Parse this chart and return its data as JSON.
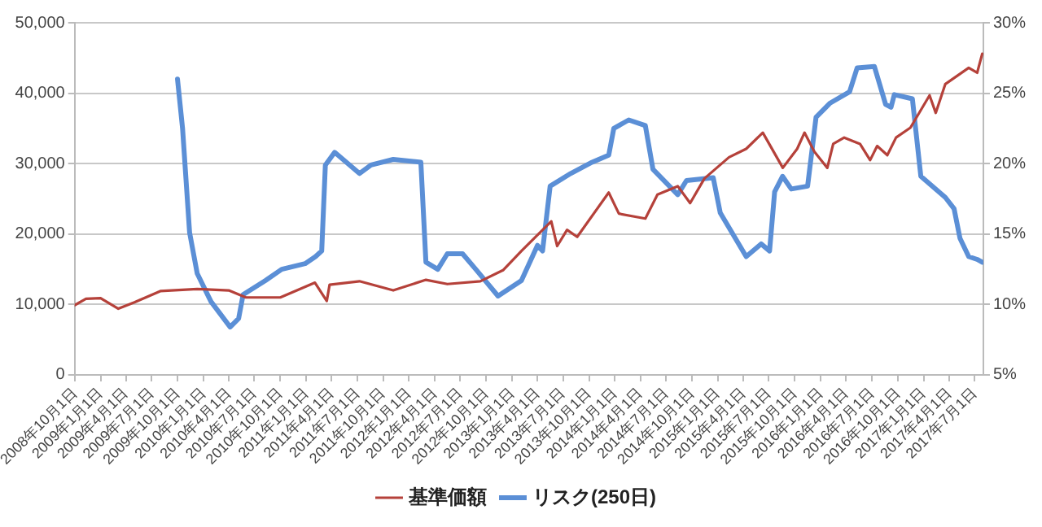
{
  "chart_data": {
    "type": "line",
    "series": [
      {
        "name": "基準価額",
        "color": "#b5413a",
        "axis": "y",
        "x": [
          "2008-10-01",
          "2008-11-10",
          "2009-01-01",
          "2009-03-05",
          "2009-05-01",
          "2009-08-01",
          "2009-12-10",
          "2010-04-01",
          "2010-06-01",
          "2010-10-01",
          "2011-02-01",
          "2011-03-15",
          "2011-03-25",
          "2011-07-09",
          "2011-11-06",
          "2012-03-01",
          "2012-05-16",
          "2012-09-10",
          "2012-12-01",
          "2013-02-03",
          "2013-05-20",
          "2013-06-10",
          "2013-07-15",
          "2013-08-20",
          "2013-12-10",
          "2014-01-15",
          "2014-04-19",
          "2014-06-01",
          "2014-08-12",
          "2014-09-25",
          "2014-11-15",
          "2015-02-10",
          "2015-04-12",
          "2015-06-10",
          "2015-08-20",
          "2015-10-10",
          "2015-11-05",
          "2015-12-10",
          "2016-01-25",
          "2016-02-15",
          "2016-03-25",
          "2016-05-20",
          "2016-06-25",
          "2016-07-20",
          "2016-08-25",
          "2016-09-25",
          "2016-11-15",
          "2017-01-22",
          "2017-02-13",
          "2017-03-19",
          "2017-06-10",
          "2017-07-10",
          "2017-07-28"
        ],
        "values": [
          9900,
          10800,
          10900,
          9400,
          10300,
          11900,
          12200,
          12000,
          11000,
          11000,
          13100,
          10500,
          12800,
          13300,
          12000,
          13500,
          12900,
          13300,
          14900,
          17600,
          21800,
          18300,
          20600,
          19600,
          25900,
          22900,
          22200,
          25600,
          26800,
          24400,
          27900,
          30900,
          32100,
          34400,
          29400,
          32100,
          34400,
          31700,
          29400,
          32800,
          33700,
          32800,
          30500,
          32500,
          31200,
          33700,
          35100,
          39700,
          37200,
          41300,
          43600,
          42900,
          45600
        ]
      },
      {
        "name": "リスク(250日)",
        "color": "#5b8fd6",
        "axis": "y2",
        "x": [
          "2009-10-01",
          "2009-10-19",
          "2009-11-13",
          "2009-12-10",
          "2010-01-28",
          "2010-04-06",
          "2010-05-06",
          "2010-05-22",
          "2010-08-09",
          "2010-10-06",
          "2010-12-28",
          "2011-02-03",
          "2011-02-25",
          "2011-03-10",
          "2011-04-12",
          "2011-07-09",
          "2011-08-19",
          "2011-11-06",
          "2012-02-12",
          "2012-03-01",
          "2012-04-12",
          "2012-05-16",
          "2012-07-09",
          "2012-08-25",
          "2012-11-12",
          "2013-02-03",
          "2013-04-01",
          "2013-04-19",
          "2013-05-16",
          "2013-07-28",
          "2013-10-12",
          "2013-12-10",
          "2013-12-28",
          "2014-02-19",
          "2014-04-19",
          "2014-05-16",
          "2014-08-12",
          "2014-09-12",
          "2014-12-16",
          "2015-01-10",
          "2015-04-12",
          "2015-06-04",
          "2015-07-04",
          "2015-07-22",
          "2015-08-19",
          "2015-09-19",
          "2015-11-16",
          "2015-12-16",
          "2016-02-04",
          "2016-04-13",
          "2016-05-10",
          "2016-07-10",
          "2016-08-19",
          "2016-09-07",
          "2016-09-19",
          "2016-11-22",
          "2016-12-22",
          "2017-03-19",
          "2017-04-19",
          "2017-05-10",
          "2017-06-10",
          "2017-07-10",
          "2017-07-28"
        ],
        "values": [
          26.0,
          22.5,
          15.1,
          12.2,
          10.2,
          8.4,
          9.0,
          10.7,
          11.7,
          12.5,
          12.9,
          13.4,
          13.8,
          19.9,
          20.8,
          19.3,
          19.9,
          20.3,
          20.1,
          13.0,
          12.5,
          13.6,
          13.6,
          12.5,
          10.6,
          11.7,
          14.2,
          13.8,
          18.4,
          19.3,
          20.1,
          20.6,
          22.5,
          23.1,
          22.7,
          19.6,
          17.8,
          18.8,
          19.0,
          16.5,
          13.4,
          14.3,
          13.8,
          18.0,
          19.1,
          18.2,
          18.4,
          23.3,
          24.3,
          25.1,
          26.8,
          26.9,
          24.2,
          24.0,
          24.9,
          24.6,
          19.1,
          17.6,
          16.8,
          14.7,
          13.4,
          13.2,
          13.0
        ]
      }
    ],
    "xlim": [
      "2008-10-01",
      "2017-08-01"
    ],
    "xticks": [
      {
        "value": "2008-10-01",
        "label": "2008年10月1日"
      },
      {
        "value": "2009-01-01",
        "label": "2009年1月1日"
      },
      {
        "value": "2009-04-01",
        "label": "2009年4月1日"
      },
      {
        "value": "2009-07-01",
        "label": "2009年7月1日"
      },
      {
        "value": "2009-10-01",
        "label": "2009年10月1日"
      },
      {
        "value": "2010-01-01",
        "label": "2010年1月1日"
      },
      {
        "value": "2010-04-01",
        "label": "2010年4月1日"
      },
      {
        "value": "2010-07-01",
        "label": "2010年7月1日"
      },
      {
        "value": "2010-10-01",
        "label": "2010年10月1日"
      },
      {
        "value": "2011-01-01",
        "label": "2011年1月1日"
      },
      {
        "value": "2011-04-01",
        "label": "2011年4月1日"
      },
      {
        "value": "2011-07-01",
        "label": "2011年7月1日"
      },
      {
        "value": "2011-10-01",
        "label": "2011年10月1日"
      },
      {
        "value": "2012-01-01",
        "label": "2012年1月1日"
      },
      {
        "value": "2012-04-01",
        "label": "2012年4月1日"
      },
      {
        "value": "2012-07-01",
        "label": "2012年7月1日"
      },
      {
        "value": "2012-10-01",
        "label": "2012年10月1日"
      },
      {
        "value": "2013-01-01",
        "label": "2013年1月1日"
      },
      {
        "value": "2013-04-01",
        "label": "2013年4月1日"
      },
      {
        "value": "2013-07-01",
        "label": "2013年7月1日"
      },
      {
        "value": "2013-10-01",
        "label": "2013年10月1日"
      },
      {
        "value": "2014-01-01",
        "label": "2014年1月1日"
      },
      {
        "value": "2014-04-01",
        "label": "2014年4月1日"
      },
      {
        "value": "2014-07-01",
        "label": "2014年7月1日"
      },
      {
        "value": "2014-10-01",
        "label": "2014年10月1日"
      },
      {
        "value": "2015-01-01",
        "label": "2015年1月1日"
      },
      {
        "value": "2015-04-01",
        "label": "2015年4月1日"
      },
      {
        "value": "2015-07-01",
        "label": "2015年7月1日"
      },
      {
        "value": "2015-10-01",
        "label": "2015年10月1日"
      },
      {
        "value": "2016-01-01",
        "label": "2016年1月1日"
      },
      {
        "value": "2016-04-01",
        "label": "2016年4月1日"
      },
      {
        "value": "2016-07-01",
        "label": "2016年7月1日"
      },
      {
        "value": "2016-10-01",
        "label": "2016年10月1日"
      },
      {
        "value": "2017-01-01",
        "label": "2017年1月1日"
      },
      {
        "value": "2017-04-01",
        "label": "2017年4月1日"
      },
      {
        "value": "2017-07-01",
        "label": "2017年7月1日"
      }
    ],
    "ylim": [
      0,
      50000
    ],
    "yticks": [
      0,
      {
        "value": 10000,
        "label": "10,000"
      },
      {
        "value": 20000,
        "label": "20,000"
      },
      {
        "value": 30000,
        "label": "30,000"
      },
      {
        "value": 40000,
        "label": "40,000"
      },
      {
        "value": 50000,
        "label": "50,000"
      }
    ],
    "y2lim": [
      5,
      30
    ],
    "y2ticks": [
      {
        "value": 5,
        "label": "5%"
      },
      {
        "value": 10,
        "label": "10%"
      },
      {
        "value": 15,
        "label": "15%"
      },
      {
        "value": 20,
        "label": "20%"
      },
      {
        "value": 25,
        "label": "25%"
      },
      {
        "value": 30,
        "label": "30%"
      }
    ],
    "grid": "y",
    "legend": "bottom",
    "marker": "none",
    "line_style": "solid"
  }
}
